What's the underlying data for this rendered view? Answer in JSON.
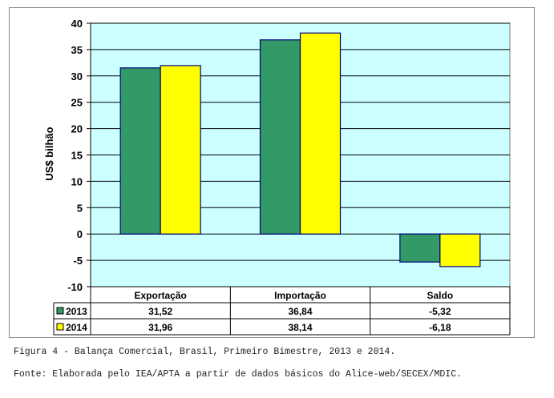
{
  "chart_data": {
    "type": "bar",
    "ylabel": "US$ bilhão",
    "categories": [
      "Exportação",
      "Importação",
      "Saldo"
    ],
    "series": [
      {
        "name": "2013",
        "values": [
          31.52,
          36.84,
          -5.32
        ],
        "labels": [
          "31,52",
          "36,84",
          "-5,32"
        ]
      },
      {
        "name": "2014",
        "values": [
          31.96,
          38.14,
          -6.18
        ],
        "labels": [
          "31,96",
          "38,14",
          "-6,18"
        ]
      }
    ],
    "ylim": [
      -10,
      40
    ],
    "yticks": [
      -10,
      -5,
      0,
      5,
      10,
      15,
      20,
      25,
      30,
      35,
      40
    ],
    "grid": true,
    "legend": "data-table",
    "colors": {
      "plot_bg": "#ccffff",
      "2013": "#339966",
      "2014": "#ffff00",
      "border": "#000080"
    }
  },
  "captions": {
    "figure": "Figura 4 - Balança Comercial, Brasil, Primeiro Bimestre, 2013 e 2014.",
    "source": "Fonte: Elaborada pelo IEA/APTA a partir de dados básicos do Alice-web/SECEX/MDIC."
  }
}
